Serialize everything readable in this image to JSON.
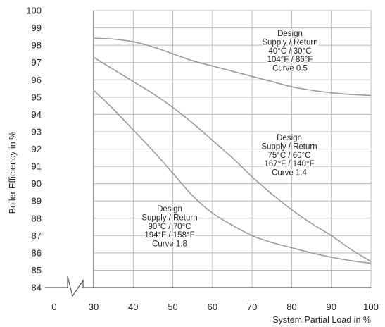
{
  "chart_data": {
    "type": "line",
    "xlabel": "System Partial Load in %",
    "ylabel": "Boiler Efficiency in %",
    "xlim": [
      30,
      100
    ],
    "ylim": [
      84,
      100
    ],
    "x_ticks": [
      0,
      30,
      40,
      50,
      60,
      70,
      80,
      90,
      100
    ],
    "y_ticks": [
      84,
      85,
      86,
      87,
      88,
      89,
      90,
      91,
      92,
      93,
      94,
      95,
      96,
      97,
      98,
      99,
      100
    ],
    "grid": true,
    "axis_break": "x",
    "series": [
      {
        "key": "curve05",
        "x": [
          30,
          35,
          40,
          45,
          50,
          55,
          60,
          65,
          70,
          75,
          80,
          85,
          90,
          95,
          100
        ],
        "y": [
          98.4,
          98.35,
          98.2,
          97.9,
          97.5,
          97.1,
          96.8,
          96.5,
          96.2,
          95.9,
          95.6,
          95.4,
          95.25,
          95.15,
          95.1
        ]
      },
      {
        "key": "curve14",
        "x": [
          30,
          35,
          40,
          45,
          50,
          55,
          60,
          65,
          70,
          75,
          80,
          85,
          90,
          95,
          100
        ],
        "y": [
          97.3,
          96.6,
          95.9,
          95.2,
          94.4,
          93.5,
          92.5,
          91.5,
          90.4,
          89.4,
          88.5,
          87.7,
          87.0,
          86.2,
          85.5
        ]
      },
      {
        "key": "curve18",
        "x": [
          30,
          35,
          40,
          45,
          50,
          55,
          60,
          65,
          70,
          75,
          80,
          85,
          90,
          95,
          100
        ],
        "y": [
          95.4,
          94.3,
          93.1,
          91.9,
          90.6,
          89.3,
          88.3,
          87.6,
          87.0,
          86.6,
          86.3,
          86.0,
          85.75,
          85.55,
          85.4
        ]
      }
    ],
    "annotations": [
      {
        "key": "curve05",
        "lines": [
          "Design",
          "Supply / Return",
          "40°C / 30°C",
          "104°F / 86°F",
          "Curve 0.5"
        ]
      },
      {
        "key": "curve14",
        "lines": [
          "Design",
          "Supply / Return",
          "75°C / 60°C",
          "167°F / 140°F",
          "Curve 1.4"
        ]
      },
      {
        "key": "curve18",
        "lines": [
          "Design",
          "Supply / Return",
          "90°C / 70°C",
          "194°F / 158°F",
          "Curve 1.8"
        ]
      }
    ]
  }
}
